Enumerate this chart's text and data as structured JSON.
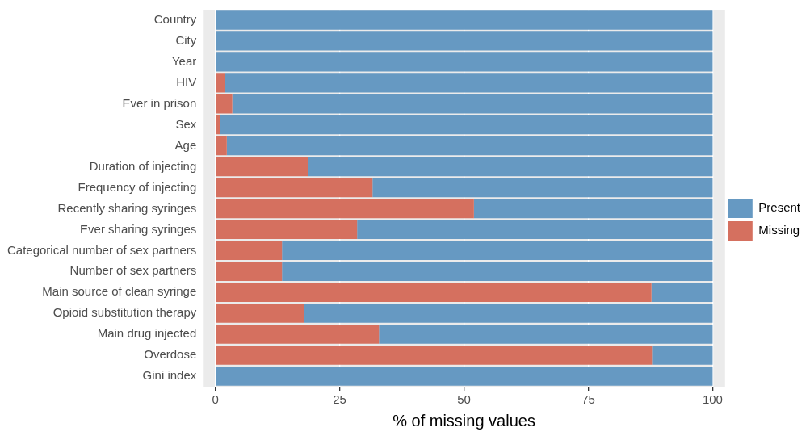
{
  "chart_data": {
    "type": "bar",
    "orientation": "horizontal",
    "stacked": true,
    "xlabel": "% of missing values",
    "categories": [
      "Country",
      "City",
      "Year",
      "HIV",
      "Ever in prison",
      "Sex",
      "Age",
      "Duration of injecting",
      "Frequency of injecting",
      "Recently sharing syringes",
      "Ever sharing syringes",
      "Categorical number of sex partners",
      "Number of sex partners",
      "Main source of clean syringe",
      "Opioid substitution therapy",
      "Main drug injected",
      "Overdose",
      "Gini index"
    ],
    "series": [
      {
        "name": "Missing",
        "color": "#d5705f",
        "values": [
          0,
          0,
          0,
          1.9,
          3.4,
          0.9,
          2.3,
          18.6,
          31.6,
          52.0,
          28.5,
          13.4,
          13.4,
          87.7,
          17.9,
          32.9,
          87.8,
          0
        ]
      },
      {
        "name": "Present",
        "color": "#6699c2",
        "values": [
          100,
          100,
          100,
          98.1,
          96.6,
          99.1,
          97.7,
          81.4,
          68.4,
          48.0,
          71.5,
          86.6,
          86.6,
          12.3,
          82.1,
          67.1,
          12.2,
          100
        ]
      }
    ],
    "xlim": [
      -2.5,
      102.5
    ],
    "xticks": [
      0,
      25,
      50,
      75,
      100
    ],
    "grid": "x",
    "legend": "right"
  }
}
